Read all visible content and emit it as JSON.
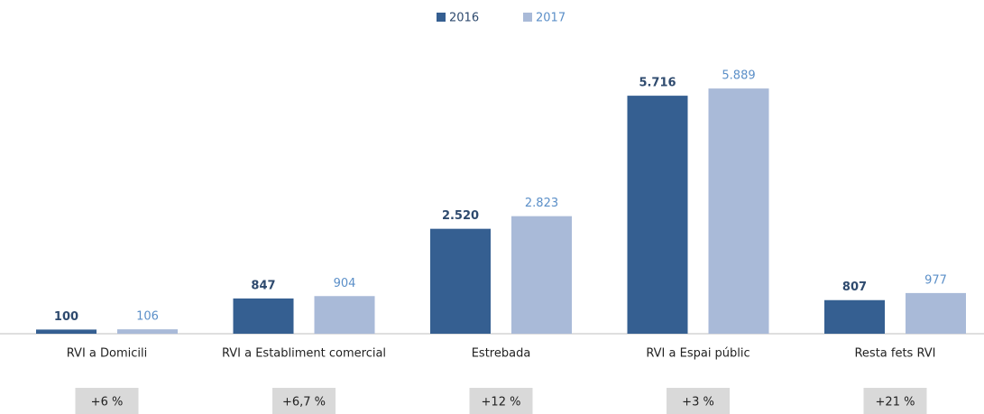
{
  "chart_data": {
    "type": "bar",
    "categories": [
      "RVI a Domicili",
      "RVI a Establiment comercial",
      "Estrebada",
      "RVI a Espai públic",
      "Resta fets RVI"
    ],
    "series": [
      {
        "name": "2016",
        "color": "#355f91",
        "values": [
          100,
          847,
          2520,
          5716,
          807
        ],
        "value_labels": [
          "100",
          "847",
          "2.520",
          "5.716",
          "807"
        ]
      },
      {
        "name": "2017",
        "color": "#a9bad8",
        "values": [
          106,
          904,
          2823,
          5889,
          977
        ],
        "value_labels": [
          "106",
          "904",
          "2.823",
          "5.889",
          "977"
        ]
      }
    ],
    "annotations": [
      "+6 %",
      "+6,7 %",
      "+12 %",
      "+3 %",
      "+21 %"
    ],
    "ylim": [
      0,
      6000
    ]
  }
}
